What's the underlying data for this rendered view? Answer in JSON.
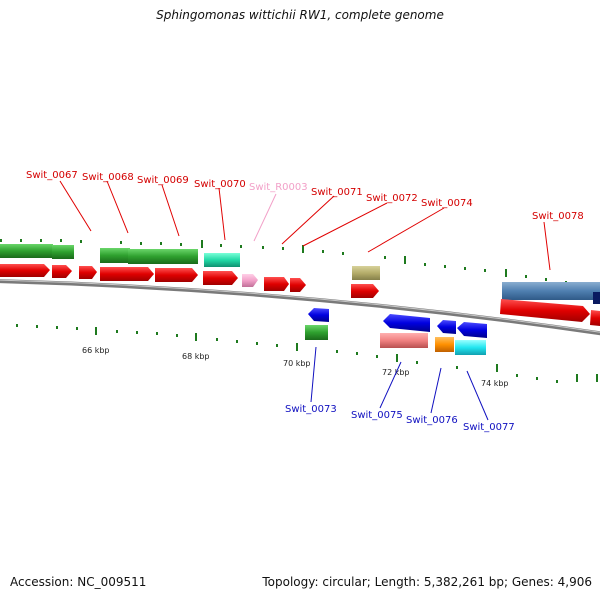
{
  "title": "Sphingomonas wittichii RW1, complete genome",
  "accession": "Accession: NC_009511",
  "summary": "Topology: circular; Length: 5,382,261 bp; Genes: 4,906",
  "scale_labels": [
    "66 kbp",
    "68 kbp",
    "70 kbp",
    "72 kbp",
    "74 kbp"
  ],
  "top_genes": [
    "Swit_0067",
    "Swit_0068",
    "Swit_0069",
    "Swit_0070",
    "Swit_R0003",
    "Swit_0071",
    "Swit_0072",
    "Swit_0074",
    "Swit_0078"
  ],
  "bottom_genes": [
    "Swit_0073",
    "Swit_0075",
    "Swit_0076",
    "Swit_0077"
  ],
  "colors": {
    "forward_cds": "#e00000",
    "reverse_cds": "#0000e0",
    "rna": "#f2a0c8",
    "label_top": "#d40000",
    "label_bottom": "#1010c0",
    "tick": "#1e7a1e",
    "backbone": "#808080"
  }
}
